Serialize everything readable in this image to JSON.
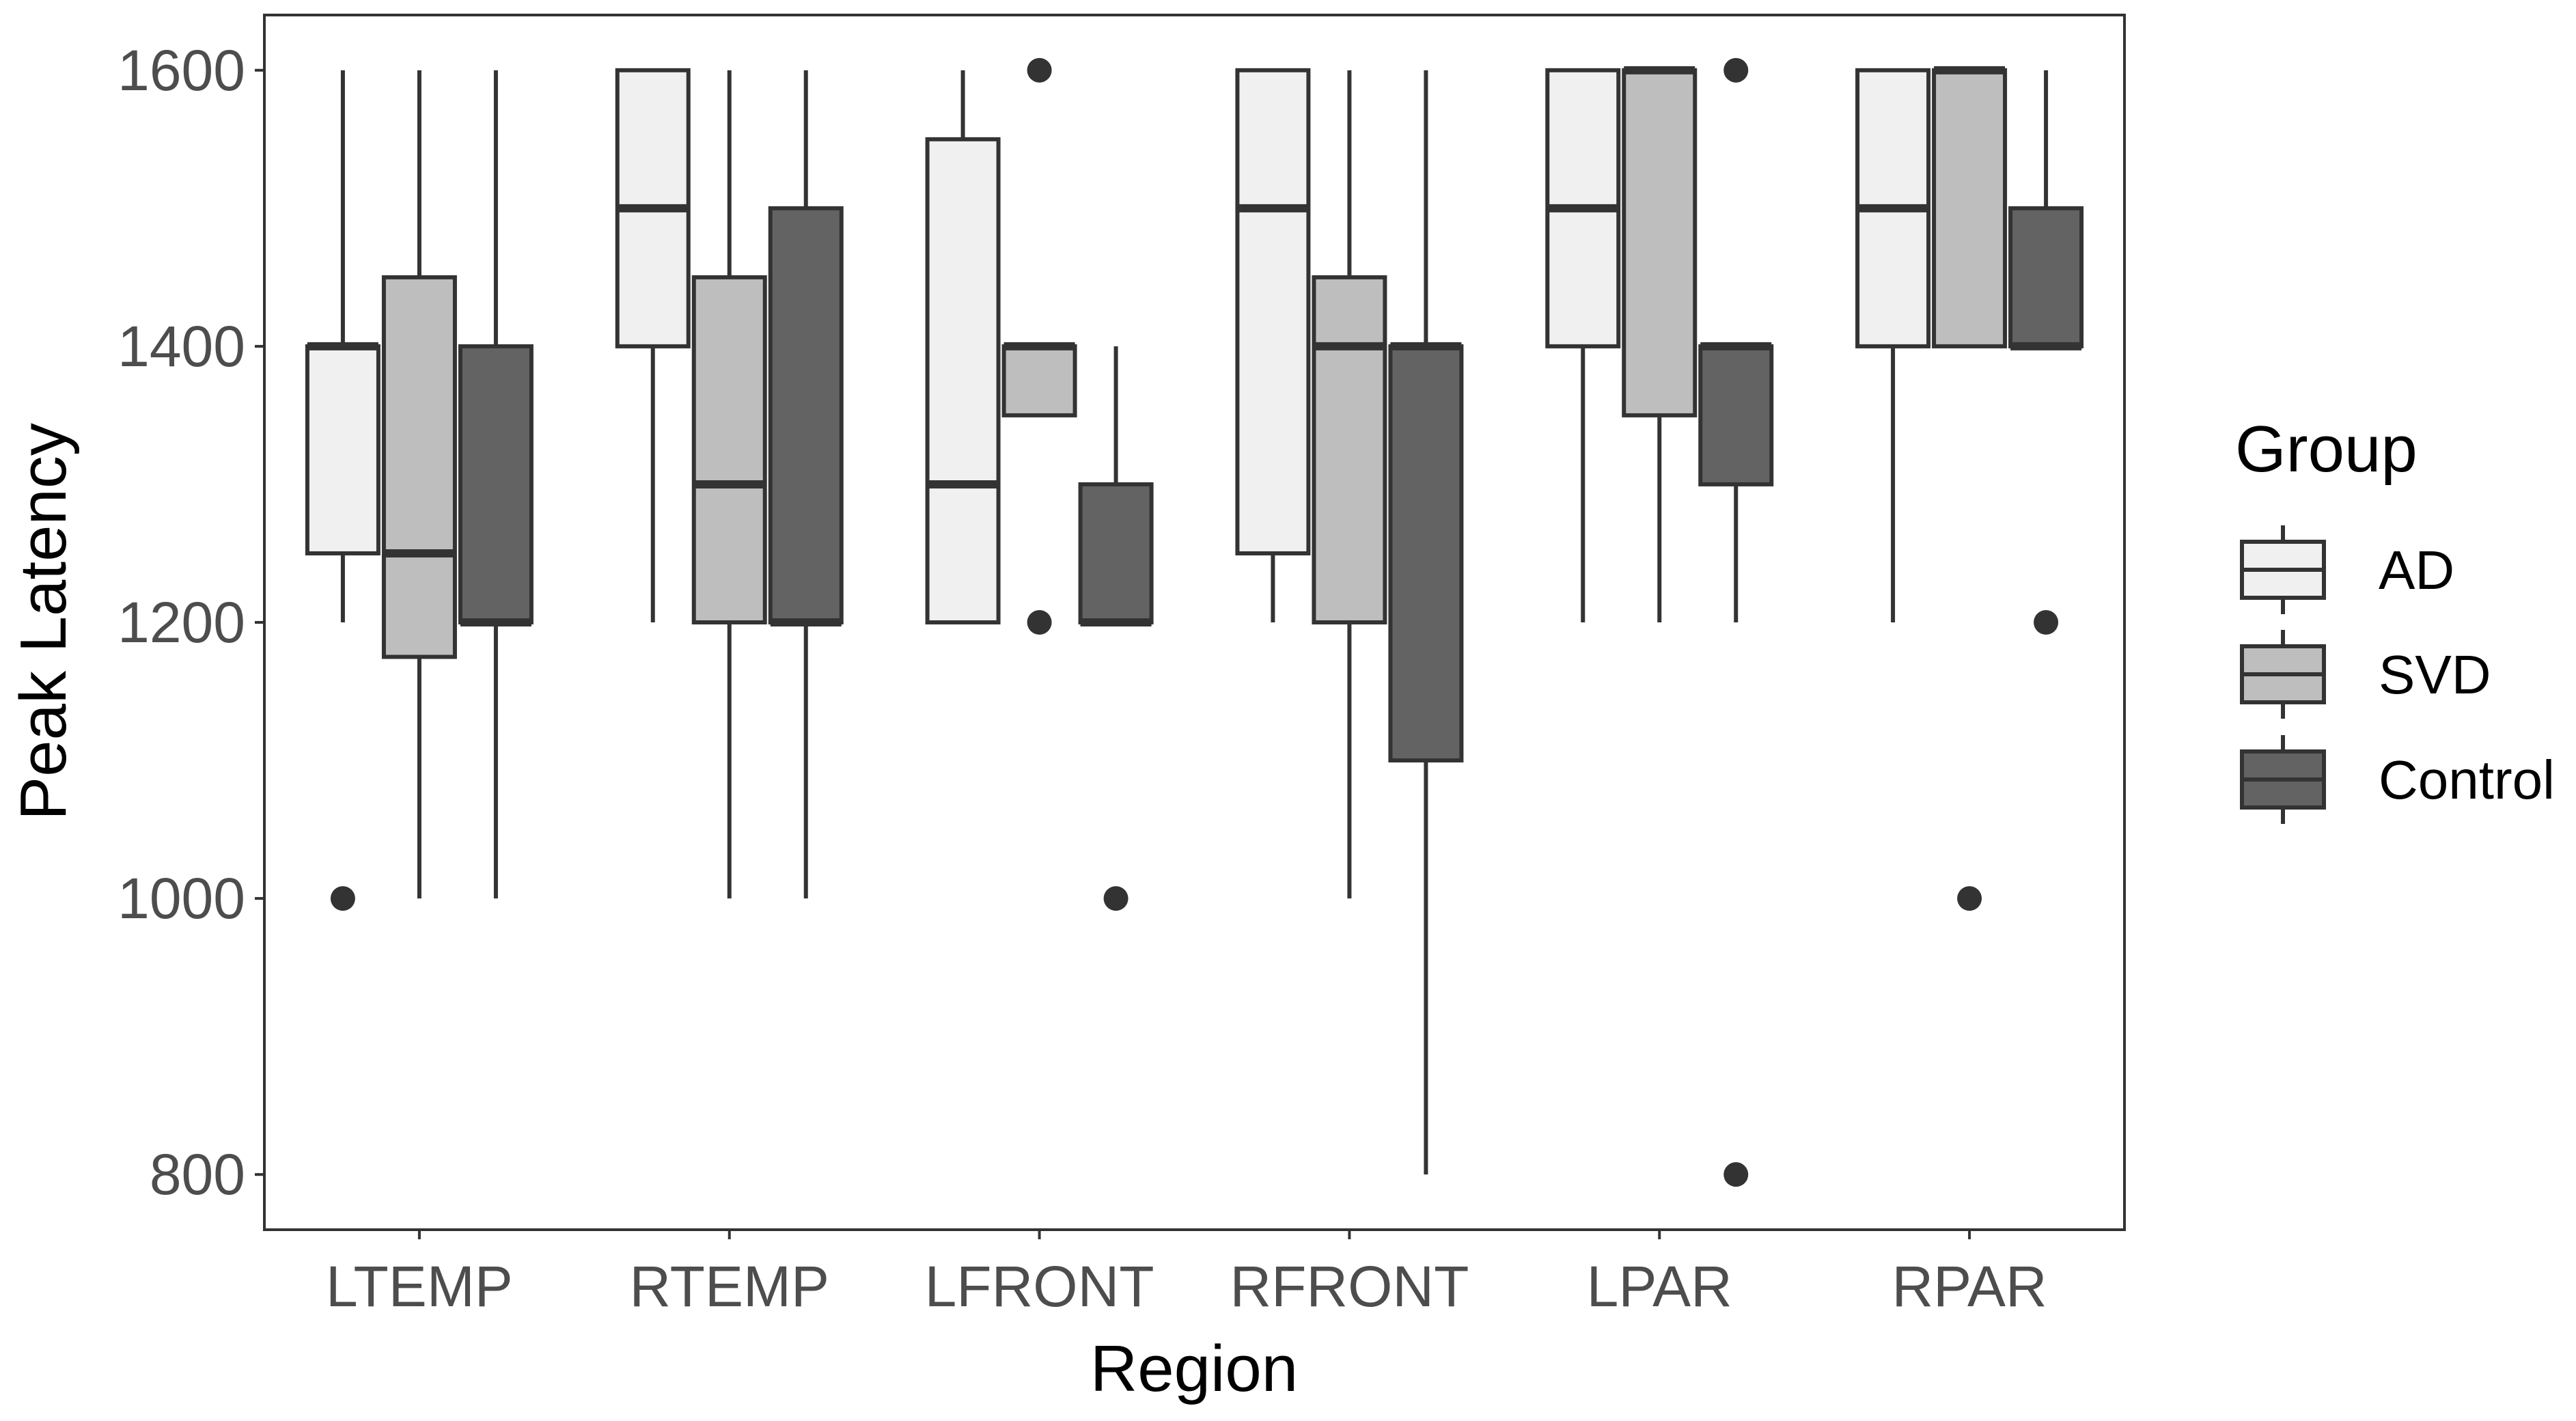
{
  "chart_data": {
    "type": "boxplot",
    "xlabel": "Region",
    "ylabel": "Peak Latency",
    "ylim": [
      760,
      1640
    ],
    "yticks": [
      800,
      1000,
      1200,
      1400,
      1600
    ],
    "grid": false,
    "legend": {
      "title": "Group",
      "placement": "right"
    },
    "categories": [
      "LTEMP",
      "RTEMP",
      "LFRONT",
      "RFRONT",
      "LPAR",
      "RPAR"
    ],
    "series": [
      {
        "name": "AD",
        "color": "#f0f0f0",
        "boxes": [
          {
            "lower_whisker": 1200,
            "q1": 1250,
            "median": 1400,
            "q3": 1400,
            "upper_whisker": 1600,
            "outliers": [
              1000
            ]
          },
          {
            "lower_whisker": 1200,
            "q1": 1400,
            "median": 1500,
            "q3": 1600,
            "upper_whisker": 1600,
            "outliers": []
          },
          {
            "lower_whisker": 1200,
            "q1": 1200,
            "median": 1300,
            "q3": 1550,
            "upper_whisker": 1600,
            "outliers": []
          },
          {
            "lower_whisker": 1200,
            "q1": 1250,
            "median": 1500,
            "q3": 1600,
            "upper_whisker": 1600,
            "outliers": []
          },
          {
            "lower_whisker": 1200,
            "q1": 1400,
            "median": 1500,
            "q3": 1600,
            "upper_whisker": 1600,
            "outliers": []
          },
          {
            "lower_whisker": 1200,
            "q1": 1400,
            "median": 1500,
            "q3": 1600,
            "upper_whisker": 1600,
            "outliers": []
          }
        ]
      },
      {
        "name": "SVD",
        "color": "#bebebe",
        "boxes": [
          {
            "lower_whisker": 1000,
            "q1": 1175,
            "median": 1250,
            "q3": 1450,
            "upper_whisker": 1600,
            "outliers": []
          },
          {
            "lower_whisker": 1000,
            "q1": 1200,
            "median": 1300,
            "q3": 1450,
            "upper_whisker": 1600,
            "outliers": []
          },
          {
            "lower_whisker": 1350,
            "q1": 1350,
            "median": 1400,
            "q3": 1400,
            "upper_whisker": 1400,
            "outliers": [
              1600,
              1200
            ]
          },
          {
            "lower_whisker": 1000,
            "q1": 1200,
            "median": 1400,
            "q3": 1450,
            "upper_whisker": 1600,
            "outliers": []
          },
          {
            "lower_whisker": 1200,
            "q1": 1350,
            "median": 1600,
            "q3": 1600,
            "upper_whisker": 1600,
            "outliers": []
          },
          {
            "lower_whisker": 1400,
            "q1": 1400,
            "median": 1600,
            "q3": 1600,
            "upper_whisker": 1600,
            "outliers": [
              1000
            ]
          }
        ]
      },
      {
        "name": "Control",
        "color": "#636363",
        "boxes": [
          {
            "lower_whisker": 1000,
            "q1": 1200,
            "median": 1200,
            "q3": 1400,
            "upper_whisker": 1600,
            "outliers": []
          },
          {
            "lower_whisker": 1000,
            "q1": 1200,
            "median": 1200,
            "q3": 1500,
            "upper_whisker": 1600,
            "outliers": []
          },
          {
            "lower_whisker": 1200,
            "q1": 1200,
            "median": 1200,
            "q3": 1300,
            "upper_whisker": 1400,
            "outliers": [
              1000
            ]
          },
          {
            "lower_whisker": 800,
            "q1": 1100,
            "median": 1400,
            "q3": 1400,
            "upper_whisker": 1600,
            "outliers": []
          },
          {
            "lower_whisker": 1200,
            "q1": 1300,
            "median": 1400,
            "q3": 1400,
            "upper_whisker": 1400,
            "outliers": [
              1600,
              800
            ]
          },
          {
            "lower_whisker": 1400,
            "q1": 1400,
            "median": 1400,
            "q3": 1500,
            "upper_whisker": 1600,
            "outliers": [
              1200
            ]
          }
        ]
      }
    ]
  }
}
